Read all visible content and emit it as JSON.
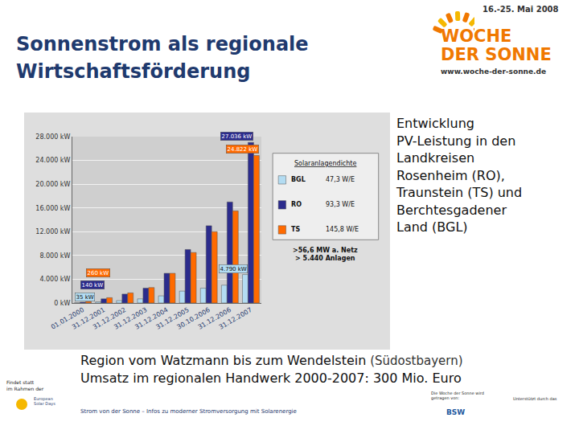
{
  "slide": {
    "title": [
      "Sonnenstrom als regionale",
      "Wirtschaftsförderung"
    ],
    "logo": {
      "date": "16.-25. Mai 2008",
      "name": [
        "WOCHE",
        "DER SONNE"
      ],
      "url": "www.woche-der-sonne.de"
    },
    "side_text": [
      "Entwicklung",
      "PV-Leistung in den",
      "Landkreisen",
      "Rosenheim (RO),",
      "Traunstein (TS) und",
      "Berchtesgadener",
      "Land (BGL)"
    ],
    "bottom_text": [
      {
        "main": "Region vom Watzmann bis zum Wendelstein",
        "note": "(Südostbayern)"
      },
      {
        "main": "Umsatz im regionalen Handwerk 2000-2007: 300 Mio. Euro",
        "note": null
      }
    ],
    "footer": {
      "left": [
        "Findet statt",
        "im Rahmen der"
      ],
      "left_logo": [
        "European",
        "Solar Days"
      ],
      "center": "Strom von der Sonne – Infos zu moderner Stromversorgung mit Solarenergie",
      "right1": [
        "Die Woche der Sonne wird",
        "getragen von:"
      ],
      "right1_logo": "BSW",
      "right2": "Unterstützt durch das"
    }
  },
  "chart_data": {
    "type": "bar",
    "categories": [
      "01.01.2000",
      "31.12.2001",
      "31.12.2002",
      "31.12.2003",
      "31.12.2004",
      "31.12.2005",
      "30.10.2006",
      "31.12.2006",
      "31.12.2007"
    ],
    "series": [
      {
        "name": "BGL",
        "color": "#b3dcf2",
        "density": "47,3 W/E",
        "values": [
          35,
          200,
          400,
          700,
          1200,
          2000,
          2500,
          3000,
          4790
        ],
        "value_labels": [
          "35 kW",
          null,
          null,
          null,
          null,
          null,
          null,
          null,
          "4.790 kW"
        ]
      },
      {
        "name": "RO",
        "color": "#2b2b8c",
        "density": "93,3 W/E",
        "values": [
          140,
          700,
          1500,
          2500,
          5000,
          9000,
          13000,
          17000,
          27036
        ],
        "value_labels": [
          "140 kW",
          null,
          null,
          null,
          null,
          null,
          null,
          null,
          "27.036 kW"
        ]
      },
      {
        "name": "TS",
        "color": "#ff6a00",
        "density": "145,8 W/E",
        "values": [
          260,
          900,
          1700,
          2600,
          5000,
          8500,
          12000,
          15500,
          24822
        ],
        "value_labels": [
          "260 kW",
          null,
          null,
          null,
          null,
          null,
          null,
          null,
          "24.822 kW"
        ]
      }
    ],
    "legend_title": "Solaranlagendichte",
    "annotations": [
      ">56,6 MW a. Netz",
      "> 5.440 Anlagen"
    ],
    "ylim": [
      0,
      28000
    ],
    "yticks": [
      {
        "value": 0,
        "label": "0 kW"
      },
      {
        "value": 4000,
        "label": "4.000 kW"
      },
      {
        "value": 8000,
        "label": "8.000 kW"
      },
      {
        "value": 12000,
        "label": "12.000 kW"
      },
      {
        "value": 16000,
        "label": "16.000 kW"
      },
      {
        "value": 20000,
        "label": "20.000 kW"
      },
      {
        "value": 24000,
        "label": "24.000 kW"
      },
      {
        "value": 28000,
        "label": "28.000 kW"
      }
    ],
    "grid": true,
    "legend": "right",
    "data_labels": true
  }
}
